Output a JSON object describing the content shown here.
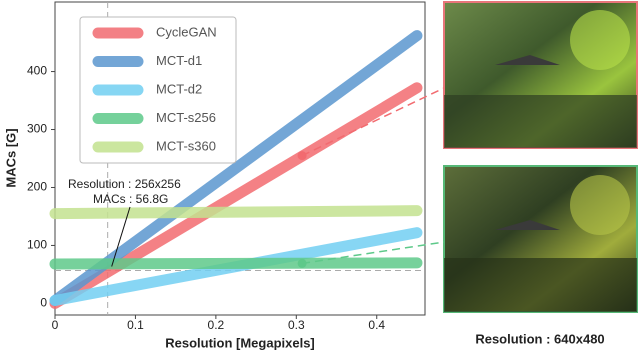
{
  "chart_data": {
    "type": "line",
    "xlabel": "Resolution [Megapixels]",
    "ylabel": "MACs [G]",
    "xlim": [
      0,
      0.46
    ],
    "ylim": [
      -20,
      520
    ],
    "xticks": [
      0,
      0.1,
      0.2,
      0.3,
      0.4
    ],
    "yticks": [
      0,
      100,
      200,
      300,
      400
    ],
    "x": [
      0,
      0.45
    ],
    "series": [
      {
        "name": "CycleGAN",
        "color": "#f26b70",
        "values": [
          0,
          372
        ]
      },
      {
        "name": "MCT-d1",
        "color": "#5b97cf",
        "values": [
          5,
          462
        ]
      },
      {
        "name": "MCT-d2",
        "color": "#72cff2",
        "values": [
          5,
          122
        ]
      },
      {
        "name": "MCT-s256",
        "color": "#5ec98a",
        "values": [
          68,
          70
        ]
      },
      {
        "name": "MCT-s360",
        "color": "#c3e28f",
        "values": [
          155,
          160
        ]
      }
    ],
    "legend": "upper left",
    "reference": {
      "x": 0.0655,
      "y": 56.8
    },
    "annotation": [
      "Resolution : 256x256",
      "MACs : 56.8G"
    ],
    "points": [
      {
        "x": 0.3072,
        "y": 255,
        "color": "#f26b70"
      },
      {
        "x": 0.3072,
        "y": 69,
        "color": "#5ec98a"
      }
    ],
    "image_caption": "Resolution : 640x480"
  }
}
